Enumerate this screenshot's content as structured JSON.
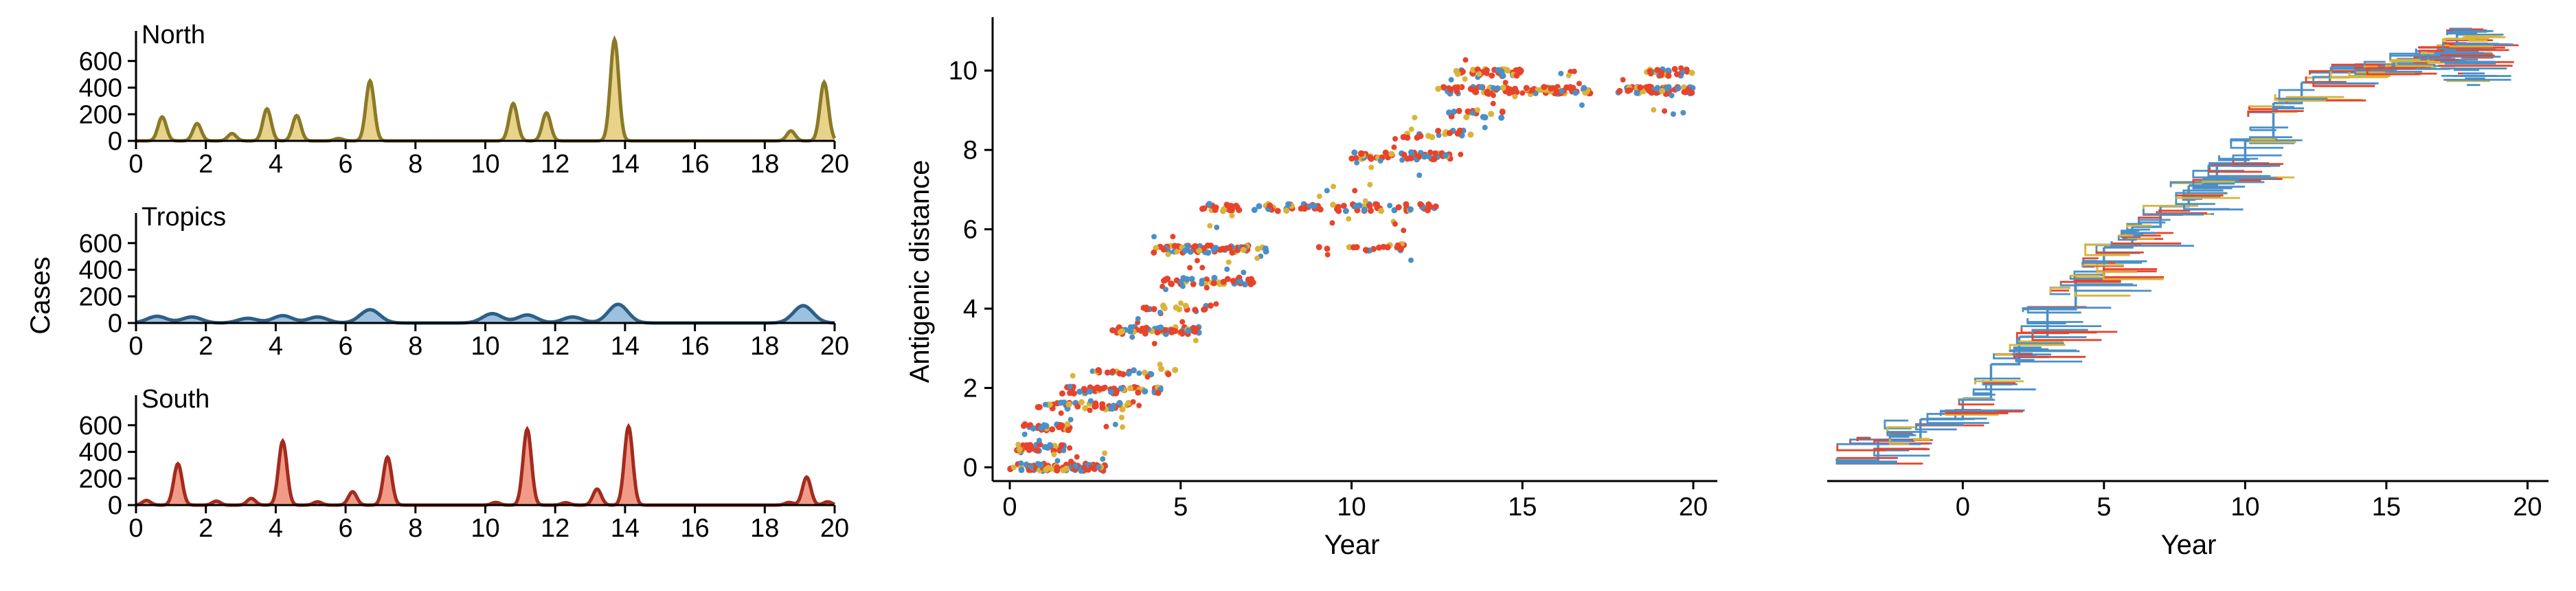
{
  "figure": {
    "ylabel_left": "Cases",
    "xlabel": "Year"
  },
  "colors": {
    "north_line": "#8a7a26",
    "north_fill": "#e9d28a",
    "tropics_line": "#2e5f87",
    "tropics_fill": "#9cc1de",
    "south_line": "#a32b1d",
    "south_fill": "#f19a88",
    "pt_red": "#e8432b",
    "pt_blue": "#4a90c8",
    "pt_yellow": "#d9b43a"
  },
  "chart_data": [
    {
      "id": "north",
      "type": "area",
      "title": "North",
      "xlim": [
        0,
        20
      ],
      "ylim": [
        0,
        800
      ],
      "xticks": [
        "0",
        "2",
        "4",
        "6",
        "8",
        "10",
        "12",
        "14",
        "16",
        "18",
        "20"
      ],
      "yticks": [
        "0",
        "200",
        "400",
        "600"
      ],
      "peaks": [
        [
          0.75,
          180
        ],
        [
          1.75,
          130
        ],
        [
          2.75,
          55
        ],
        [
          3.75,
          240
        ],
        [
          4.6,
          190
        ],
        [
          5.8,
          18
        ],
        [
          6.7,
          450
        ],
        [
          10.8,
          280
        ],
        [
          11.75,
          210
        ],
        [
          13.7,
          760
        ],
        [
          18.75,
          75
        ],
        [
          19.7,
          440
        ]
      ]
    },
    {
      "id": "tropics",
      "type": "area",
      "title": "Tropics",
      "xlim": [
        0,
        20
      ],
      "ylim": [
        0,
        800
      ],
      "xticks": [
        "0",
        "2",
        "4",
        "6",
        "8",
        "10",
        "12",
        "14",
        "16",
        "18",
        "20"
      ],
      "yticks": [
        "0",
        "200",
        "400",
        "600"
      ],
      "peaks": [
        [
          0.6,
          50
        ],
        [
          1.6,
          45
        ],
        [
          3.2,
          35
        ],
        [
          4.2,
          55
        ],
        [
          5.2,
          45
        ],
        [
          6.7,
          100
        ],
        [
          10.2,
          70
        ],
        [
          11.2,
          60
        ],
        [
          12.5,
          45
        ],
        [
          13.8,
          140
        ],
        [
          19.1,
          130
        ]
      ]
    },
    {
      "id": "south",
      "type": "area",
      "title": "South",
      "xlim": [
        0,
        20
      ],
      "ylim": [
        0,
        800
      ],
      "xticks": [
        "0",
        "2",
        "4",
        "6",
        "8",
        "10",
        "12",
        "14",
        "16",
        "18",
        "20"
      ],
      "yticks": [
        "0",
        "200",
        "400",
        "600"
      ],
      "peaks": [
        [
          0.3,
          35
        ],
        [
          1.2,
          310
        ],
        [
          2.3,
          30
        ],
        [
          3.3,
          50
        ],
        [
          4.2,
          480
        ],
        [
          5.2,
          25
        ],
        [
          6.2,
          100
        ],
        [
          7.2,
          360
        ],
        [
          10.3,
          20
        ],
        [
          11.2,
          570
        ],
        [
          12.3,
          18
        ],
        [
          13.2,
          120
        ],
        [
          14.1,
          590
        ],
        [
          18.7,
          20
        ],
        [
          19.2,
          210
        ],
        [
          19.8,
          25
        ]
      ]
    },
    {
      "id": "antigenic",
      "type": "scatter",
      "xlabel": "Year",
      "ylabel": "Antigenic distance",
      "xlim": [
        0,
        20
      ],
      "ylim": [
        0,
        11
      ],
      "xticks": [
        "0",
        "5",
        "10",
        "15",
        "20"
      ],
      "yticks": [
        "0",
        "2",
        "4",
        "6",
        "8",
        "10"
      ],
      "clusters": [
        {
          "x": [
            0,
            2.8
          ],
          "y": 0.0,
          "n": 90
        },
        {
          "x": [
            0.2,
            1.6
          ],
          "y": 0.5,
          "n": 30
        },
        {
          "x": [
            0.4,
            1.8
          ],
          "y": 1.0,
          "n": 25
        },
        {
          "x": [
            0.8,
            3.5
          ],
          "y": 1.55,
          "n": 40
        },
        {
          "x": [
            1.5,
            4.6
          ],
          "y": 1.95,
          "n": 45
        },
        {
          "x": [
            2.5,
            5.0
          ],
          "y": 2.4,
          "n": 20
        },
        {
          "x": [
            3.0,
            5.6
          ],
          "y": 3.45,
          "n": 60
        },
        {
          "x": [
            3.8,
            6.2
          ],
          "y": 4.0,
          "n": 15
        },
        {
          "x": [
            4.5,
            7.2
          ],
          "y": 4.7,
          "n": 40
        },
        {
          "x": [
            4.2,
            7.5
          ],
          "y": 5.5,
          "n": 70
        },
        {
          "x": [
            5.5,
            12.5
          ],
          "y": 6.55,
          "n": 90
        },
        {
          "x": [
            9.0,
            11.8
          ],
          "y": 5.55,
          "n": 20
        },
        {
          "x": [
            10.0,
            13.2
          ],
          "y": 7.85,
          "n": 55
        },
        {
          "x": [
            11.5,
            13.8
          ],
          "y": 8.4,
          "n": 20
        },
        {
          "x": [
            12.8,
            14.5
          ],
          "y": 8.9,
          "n": 15
        },
        {
          "x": [
            12.5,
            17.0
          ],
          "y": 9.5,
          "n": 90
        },
        {
          "x": [
            13.0,
            15.0
          ],
          "y": 9.95,
          "n": 40
        },
        {
          "x": [
            17.8,
            20.0
          ],
          "y": 9.5,
          "n": 55
        },
        {
          "x": [
            18.5,
            20.0
          ],
          "y": 9.95,
          "n": 25
        }
      ],
      "series_colors": [
        "#e8432b",
        "#4a90c8",
        "#d9b43a"
      ]
    },
    {
      "id": "tree",
      "type": "tree",
      "xlabel": "Year",
      "xlim": [
        -4.8,
        20.5
      ],
      "xticks": [
        "0",
        "5",
        "10",
        "15",
        "20"
      ],
      "series_colors": [
        "#4a90c8",
        "#e8432b",
        "#d9b43a"
      ]
    }
  ]
}
